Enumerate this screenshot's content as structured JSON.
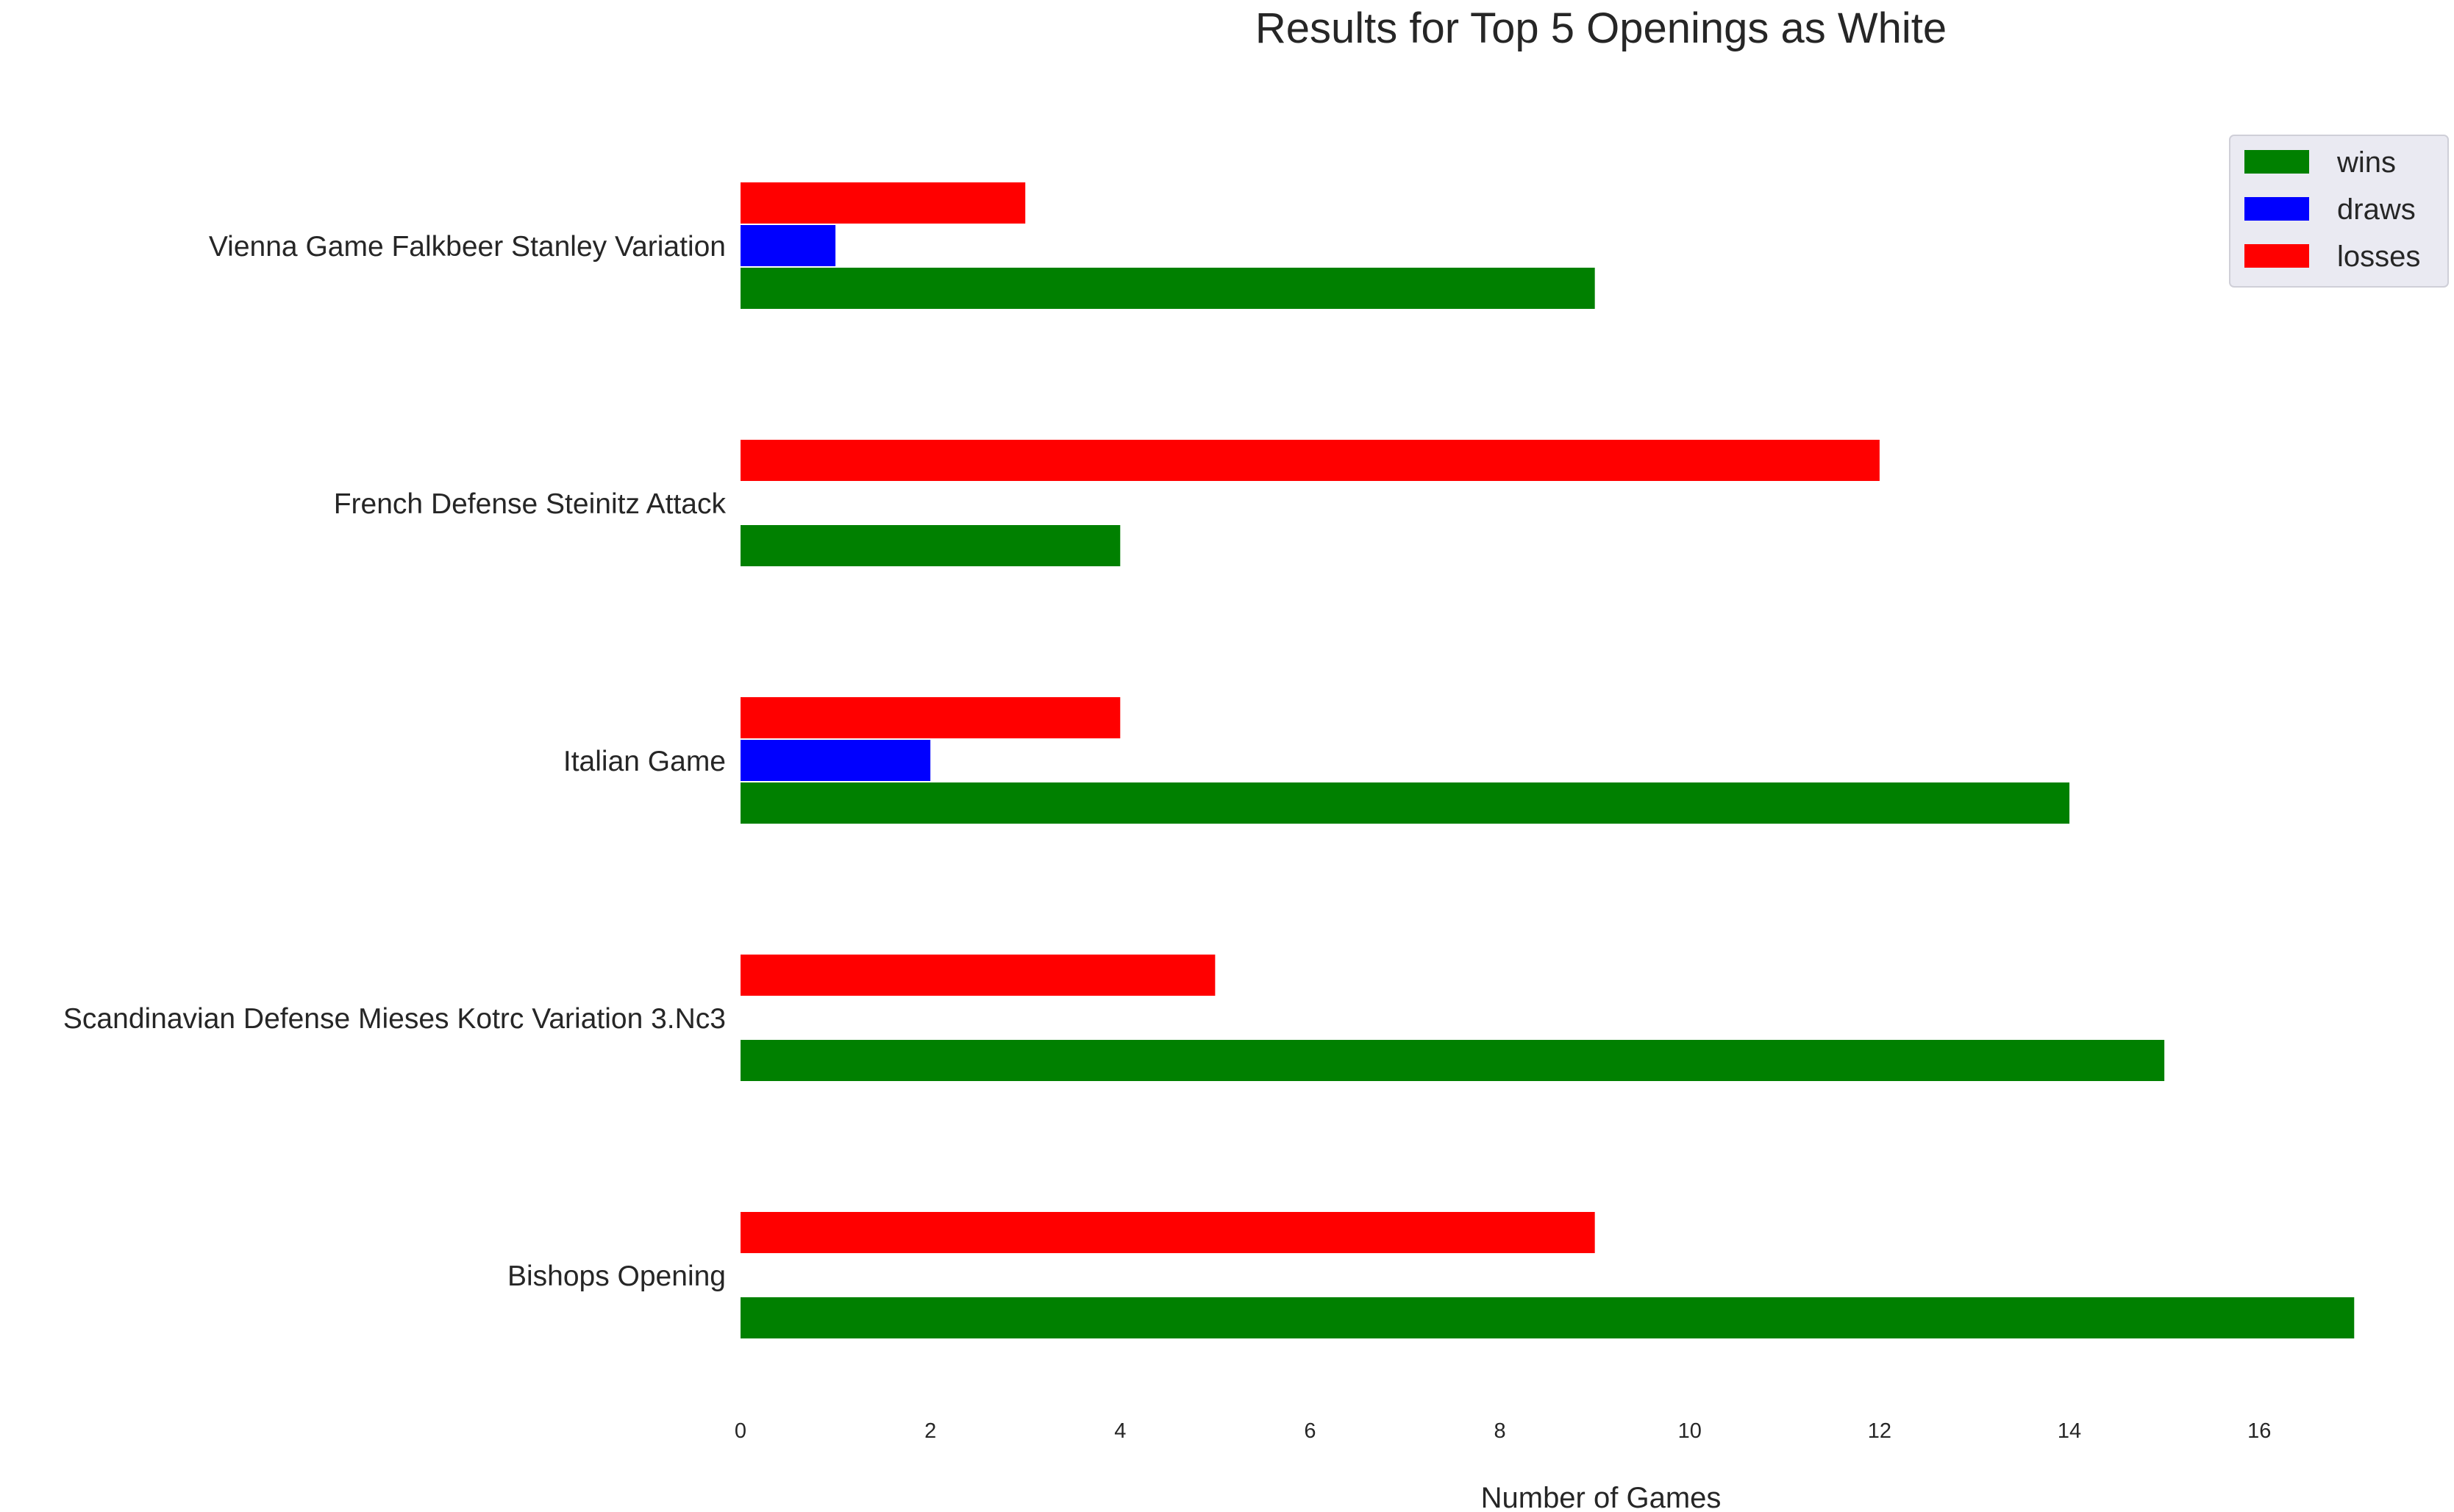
{
  "chart_data": {
    "type": "bar",
    "orientation": "horizontal",
    "title": "Results for Top 5 Openings as White",
    "xlabel": "Number of Games",
    "ylabel": "",
    "xlim": [
      0,
      17.3
    ],
    "xticks": [
      0,
      2,
      4,
      6,
      8,
      10,
      12,
      14,
      16
    ],
    "grid": false,
    "legend_position": "top-right",
    "categories": [
      "Vienna Game Falkbeer Stanley Variation",
      "French Defense Steinitz Attack",
      "Italian Game",
      "Scandinavian Defense Mieses Kotrc Variation 3.Nc3",
      "Bishops Opening"
    ],
    "series": [
      {
        "name": "wins",
        "color": "#008000",
        "values": [
          9,
          4,
          14,
          15,
          17
        ]
      },
      {
        "name": "draws",
        "color": "#0000ff",
        "values": [
          1,
          0,
          2,
          0,
          0
        ]
      },
      {
        "name": "losses",
        "color": "#ff0000",
        "values": [
          3,
          12,
          4,
          5,
          9
        ]
      }
    ]
  }
}
